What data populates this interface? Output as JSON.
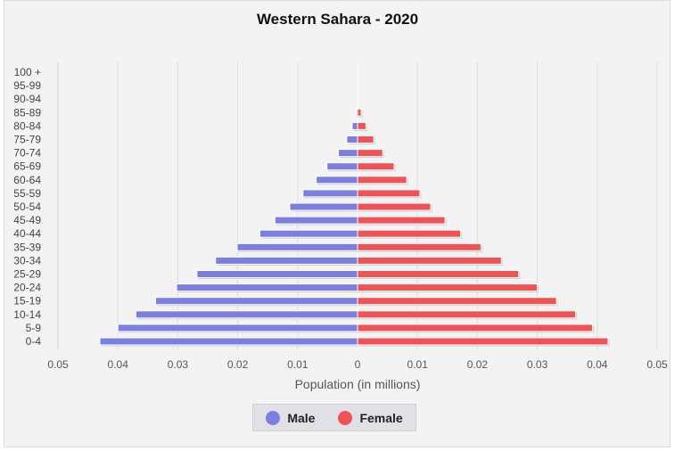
{
  "chart_data": {
    "type": "bar",
    "orientation": "horizontal",
    "title": "Western Sahara - 2020",
    "xlabel": "Population (in millions)",
    "ylabel": "",
    "xlim": [
      -0.05,
      0.05
    ],
    "x_tick_labels": [
      "0.05",
      "0.04",
      "0.03",
      "0.02",
      "0.01",
      "0",
      "0.01",
      "0.02",
      "0.03",
      "0.04",
      "0.05"
    ],
    "categories": [
      "100 +",
      "95-99",
      "90-94",
      "85-89",
      "80-84",
      "75-79",
      "70-74",
      "65-69",
      "60-64",
      "55-59",
      "50-54",
      "45-49",
      "40-44",
      "35-39",
      "30-34",
      "25-29",
      "20-24",
      "15-19",
      "10-14",
      "5-9",
      "0-4"
    ],
    "series": [
      {
        "name": "Male",
        "color": "#7b7fe0",
        "values": [
          0.0,
          0.0,
          0.0,
          0.0002,
          0.0009,
          0.0018,
          0.0032,
          0.0051,
          0.0069,
          0.0091,
          0.0113,
          0.0138,
          0.0163,
          0.0201,
          0.0237,
          0.0268,
          0.0302,
          0.0337,
          0.037,
          0.04,
          0.043
        ]
      },
      {
        "name": "Female",
        "color": "#ef5355",
        "values": [
          0.0,
          0.0,
          0.0,
          0.0006,
          0.0014,
          0.0027,
          0.0042,
          0.0061,
          0.0082,
          0.0104,
          0.0122,
          0.0146,
          0.0172,
          0.0206,
          0.024,
          0.0269,
          0.03,
          0.0332,
          0.0364,
          0.0392,
          0.0418
        ]
      }
    ],
    "grid": true,
    "legend_position": "bottom"
  },
  "legend": {
    "male_label": "Male",
    "female_label": "Female"
  }
}
